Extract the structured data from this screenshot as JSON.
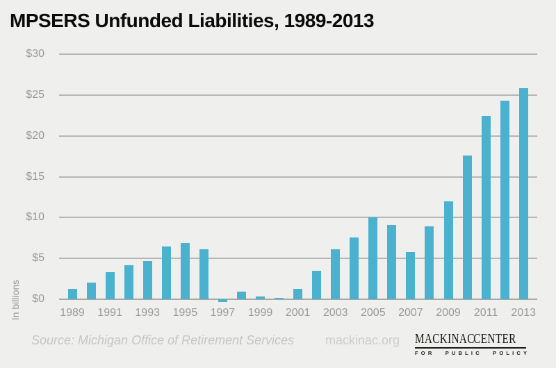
{
  "title": "MPSERS Unfunded Liabilities, 1989-2013",
  "colors": {
    "background": "#efefed",
    "bar": "#4ab2ce",
    "gridline": "#b8b6b4",
    "axis_text": "#97999b",
    "logo_teal": "#1d7488"
  },
  "chart_data": {
    "type": "bar",
    "title": "MPSERS Unfunded Liabilities, 1989-2013",
    "xlabel": "",
    "ylabel": "In billions",
    "x": [
      1989,
      1990,
      1991,
      1992,
      1993,
      1994,
      1995,
      1996,
      1997,
      1998,
      1999,
      2000,
      2001,
      2002,
      2003,
      2004,
      2005,
      2006,
      2007,
      2008,
      2009,
      2010,
      2011,
      2012,
      2013
    ],
    "values": [
      1.3,
      2.0,
      3.3,
      4.2,
      4.7,
      6.5,
      6.9,
      6.1,
      -0.3,
      0.9,
      0.3,
      0.2,
      1.3,
      3.5,
      6.1,
      7.6,
      10.0,
      9.1,
      5.8,
      8.9,
      12.0,
      17.6,
      22.4,
      24.3,
      25.8
    ],
    "units": "billions of dollars",
    "ylim": [
      0,
      30
    ],
    "yticks": [
      30,
      25,
      20,
      15,
      10,
      5,
      0
    ],
    "ytick_labels": [
      "$30",
      "$25",
      "$20",
      "$15",
      "$10",
      "$5",
      "$0"
    ],
    "xtick_labels": [
      "1989",
      "1991",
      "1993",
      "1995",
      "1997",
      "1999",
      "2001",
      "2003",
      "2005",
      "2007",
      "2009",
      "2011",
      "2013"
    ],
    "grid": true,
    "legend": "none"
  },
  "footer": {
    "source": "Source: Michigan Office of Retirement Services",
    "site": "mackinac.org",
    "logo": {
      "word1": "MACKINAC",
      "word2": "CENTER",
      "tagline": "FOR PUBLIC POLICY"
    }
  }
}
